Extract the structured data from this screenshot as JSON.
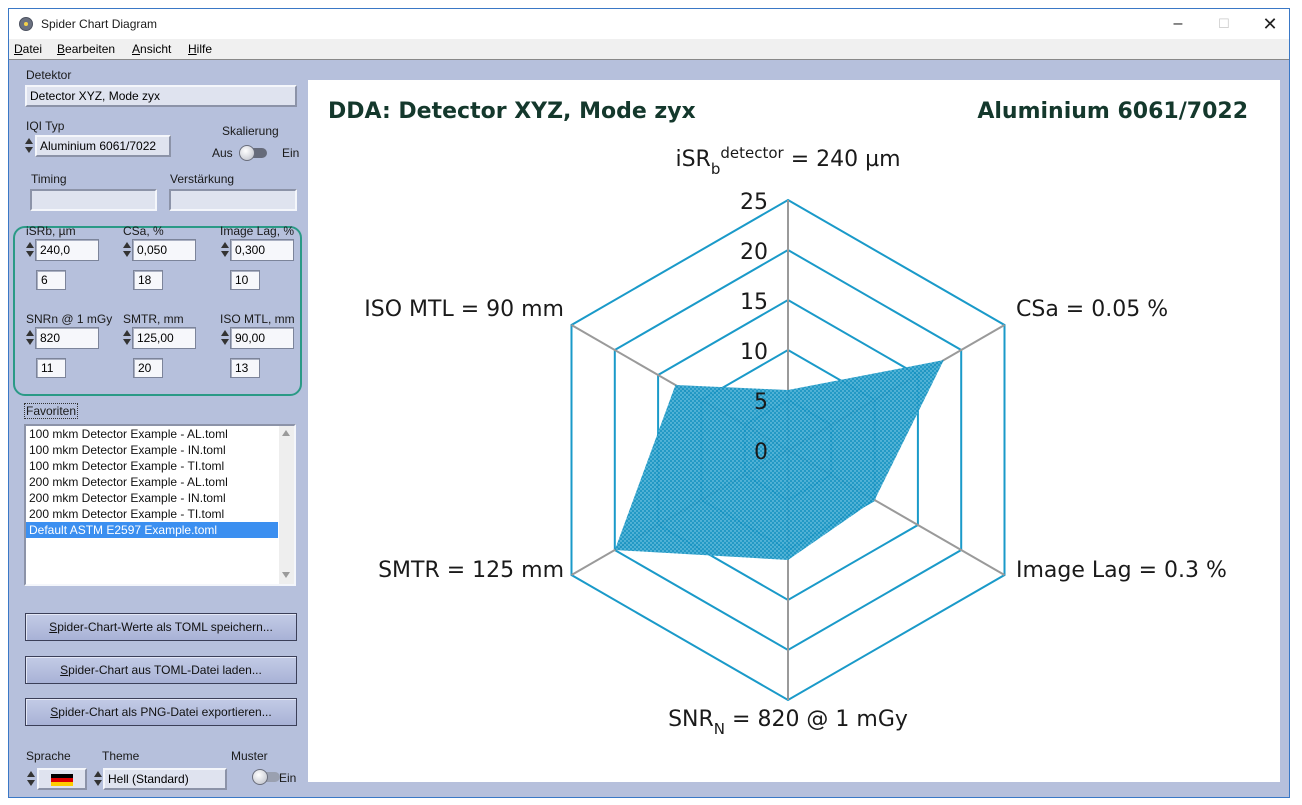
{
  "window": {
    "title": "Spider Chart Diagram",
    "minimize": "–",
    "maximize": "☐",
    "close": "✕"
  },
  "menu": [
    "Datei",
    "Bearbeiten",
    "Ansicht",
    "Hilfe"
  ],
  "menu_underline": [
    "D",
    "B",
    "A",
    "H"
  ],
  "left": {
    "detektor_label": "Detektor",
    "detektor_value": "Detector XYZ, Mode zyx",
    "iqi_label": "IQI Typ",
    "iqi_value": "Aluminium 6061/7022",
    "skalierung_label": "Skalierung",
    "skalierung_off": "Aus",
    "skalierung_on": "Ein",
    "timing_label": "Timing",
    "timing_value": "",
    "verstaerkung_label": "Verstärkung",
    "verstaerkung_value": "",
    "params": [
      {
        "label": "iSRb, µm",
        "value": "240,0",
        "index": "6"
      },
      {
        "label": "CSa, %",
        "value": "0,050",
        "index": "18"
      },
      {
        "label": "Image Lag, %",
        "value": "0,300",
        "index": "10"
      },
      {
        "label": "SNRn @ 1 mGy",
        "value": "820",
        "index": "11"
      },
      {
        "label": "SMTR, mm",
        "value": "125,00",
        "index": "20"
      },
      {
        "label": "ISO MTL, mm",
        "value": "90,00",
        "index": "13"
      }
    ],
    "favoriten_label": "Favoriten",
    "favoriten": [
      "100 mkm Detector Example - AL.toml",
      "100 mkm Detector Example - IN.toml",
      "100 mkm Detector Example - TI.toml",
      "200 mkm Detector Example - AL.toml",
      "200 mkm Detector Example - IN.toml",
      "200 mkm Detector Example - TI.toml",
      "Default ASTM E2597 Example.toml"
    ],
    "favoriten_selected": 6,
    "buttons": [
      "Spider-Chart-Werte als TOML speichern...",
      "Spider-Chart aus TOML-Datei laden...",
      "Spider-Chart als PNG-Datei exportieren..."
    ],
    "sprache_label": "Sprache",
    "theme_label": "Theme",
    "theme_value": "Hell (Standard)",
    "muster_label": "Muster",
    "muster_on": "Ein"
  },
  "chart": {
    "title_left": "DDA: Detector XYZ, Mode zyx",
    "title_right": "Aluminium 6061/7022",
    "accent": "#1a9ac9",
    "grid": "#9a9a9a",
    "fill": "#1793c2",
    "title_color": "#14382c"
  },
  "chart_data": {
    "type": "radar",
    "title": "DDA: Detector XYZ, Mode zyx",
    "subtitle": "Aluminium 6061/7022",
    "axes": [
      {
        "label_main": "iSR",
        "label_sub": "b",
        "label_sup": "detector",
        "label_rest": " = 240 µm"
      },
      {
        "label_main": "CSa = 0.05 %",
        "label_sub": "",
        "label_sup": "",
        "label_rest": ""
      },
      {
        "label_main": "Image Lag = 0.3 %",
        "label_sub": "",
        "label_sup": "",
        "label_rest": ""
      },
      {
        "label_main": "SNR",
        "label_sub": "N",
        "label_sup": "",
        "label_rest": " = 820 @ 1 mGy"
      },
      {
        "label_main": "SMTR = 125 mm",
        "label_sub": "",
        "label_sup": "",
        "label_rest": ""
      },
      {
        "label_main": "ISO MTL = 90 mm",
        "label_sub": "",
        "label_sup": "",
        "label_rest": ""
      }
    ],
    "values": [
      6,
      18,
      10,
      11,
      20,
      13
    ],
    "rlim": [
      0,
      25
    ],
    "ticks": [
      0,
      5,
      10,
      15,
      20,
      25
    ],
    "tick_labels": [
      "0",
      "5",
      "10",
      "15",
      "20",
      "25"
    ]
  }
}
